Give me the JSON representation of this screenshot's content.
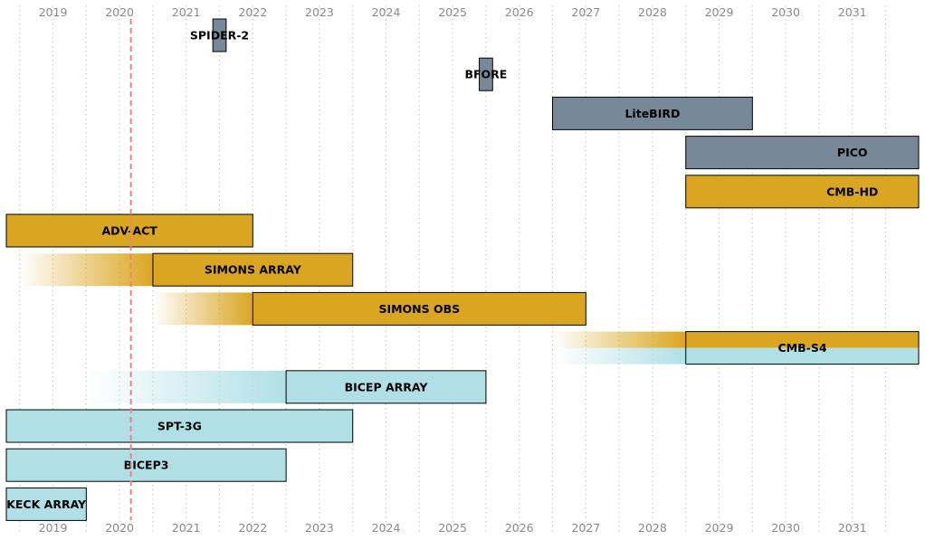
{
  "chart_data": {
    "type": "timeline",
    "title": "",
    "xlabel": "",
    "ylabel": "",
    "xlim": [
      2018.3,
      2032
    ],
    "x_ticks": [
      2019,
      2020,
      2021,
      2022,
      2023,
      2024,
      2025,
      2026,
      2027,
      2028,
      2029,
      2030,
      2031
    ],
    "tick_labels": [
      "2019",
      "2020",
      "2021",
      "2022",
      "2023",
      "2024",
      "2025",
      "2026",
      "2027",
      "2028",
      "2029",
      "2030",
      "2031"
    ],
    "grid": true,
    "current_date": 2020.17,
    "colors": {
      "satellite": "#778899",
      "ground_gold": "#daa520",
      "ground_blue": "#b0e0e6",
      "today_line": "#f08080",
      "grid": "#cccccc",
      "edge": "#000000"
    },
    "bars": [
      {
        "label": "SPIDER-2",
        "start": 2021.4,
        "end": 2021.6,
        "color": "satellite"
      },
      {
        "label": "BFORE",
        "start": 2025.4,
        "end": 2025.6,
        "color": "satellite"
      },
      {
        "label": "LiteBIRD",
        "start": 2026.5,
        "end": 2029.5,
        "color": "satellite"
      },
      {
        "label": "PICO",
        "start": 2028.5,
        "end": 2033.5,
        "color": "satellite"
      },
      {
        "label": "CMB-HD",
        "start": 2028.5,
        "end": 2033.5,
        "color": "ground_gold"
      },
      {
        "label": "ADV-ACT",
        "start": 2018.3,
        "end": 2022.0,
        "color": "ground_gold"
      },
      {
        "label": "SIMONS ARRAY",
        "start": 2020.5,
        "end": 2023.5,
        "color": "ground_gold",
        "lead_in_start": 2018.5
      },
      {
        "label": "SIMONS OBS",
        "start": 2022.0,
        "end": 2027.0,
        "color": "ground_gold",
        "lead_in_start": 2020.5
      },
      {
        "label": "CMB-S4",
        "start": 2028.5,
        "end": 2032.0,
        "color": "ground_gold",
        "color2": "ground_blue",
        "lead_in_start": 2026.5
      },
      {
        "label": "BICEP ARRAY",
        "start": 2022.5,
        "end": 2025.5,
        "color": "ground_blue",
        "lead_in_start": 2019.5
      },
      {
        "label": "SPT-3G",
        "start": 2018.3,
        "end": 2023.5,
        "color": "ground_blue"
      },
      {
        "label": "BICEP3",
        "start": 2018.3,
        "end": 2022.5,
        "color": "ground_blue"
      },
      {
        "label": "KECK ARRAY",
        "start": 2018.3,
        "end": 2019.5,
        "color": "ground_blue"
      }
    ]
  }
}
